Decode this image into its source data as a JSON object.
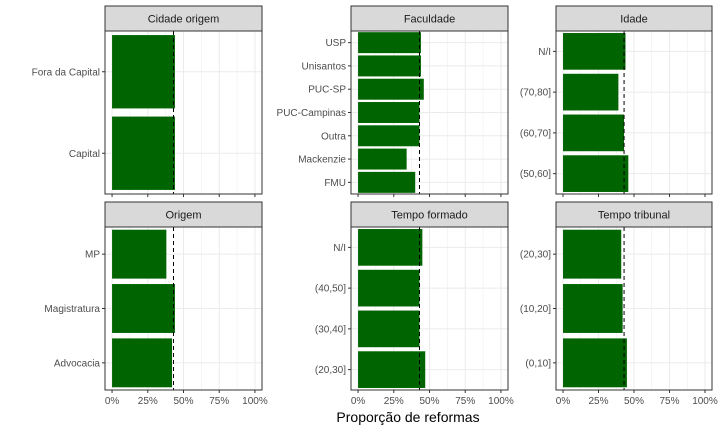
{
  "chart_data": {
    "type": "bar",
    "orientation": "horizontal",
    "xlabel": "Proporção de reformas",
    "ylabel": "",
    "xlim": [
      0,
      1
    ],
    "x_ticks": [
      "0%",
      "25%",
      "50%",
      "75%",
      "100%"
    ],
    "reference_line": 0.43,
    "grid": true,
    "bar_color": "#006400",
    "strip_fill": "#d9d9d9",
    "panels": [
      {
        "title": "Cidade origem",
        "categories": [
          "Fora da Capital",
          "Capital"
        ],
        "values": [
          0.44,
          0.44
        ]
      },
      {
        "title": "Faculdade",
        "categories": [
          "USP",
          "Unisantos",
          "PUC-SP",
          "PUC-Campinas",
          "Outra",
          "Mackenzie",
          "FMU"
        ],
        "values": [
          0.44,
          0.44,
          0.46,
          0.43,
          0.43,
          0.34,
          0.4
        ]
      },
      {
        "title": "Idade",
        "categories": [
          "N/I",
          "(70,80]",
          "(60,70]",
          "(50,60]"
        ],
        "values": [
          0.44,
          0.39,
          0.43,
          0.46
        ]
      },
      {
        "title": "Origem",
        "categories": [
          "MP",
          "Magistratura",
          "Advocacia"
        ],
        "values": [
          0.38,
          0.44,
          0.42
        ]
      },
      {
        "title": "Tempo formado",
        "categories": [
          "N/I",
          "(40,50]",
          "(30,40]",
          "(20,30]"
        ],
        "values": [
          0.45,
          0.43,
          0.43,
          0.47
        ]
      },
      {
        "title": "Tempo tribunal",
        "categories": [
          "(20,30]",
          "(10,20]",
          "(0,10]"
        ],
        "values": [
          0.41,
          0.42,
          0.45
        ]
      }
    ]
  }
}
